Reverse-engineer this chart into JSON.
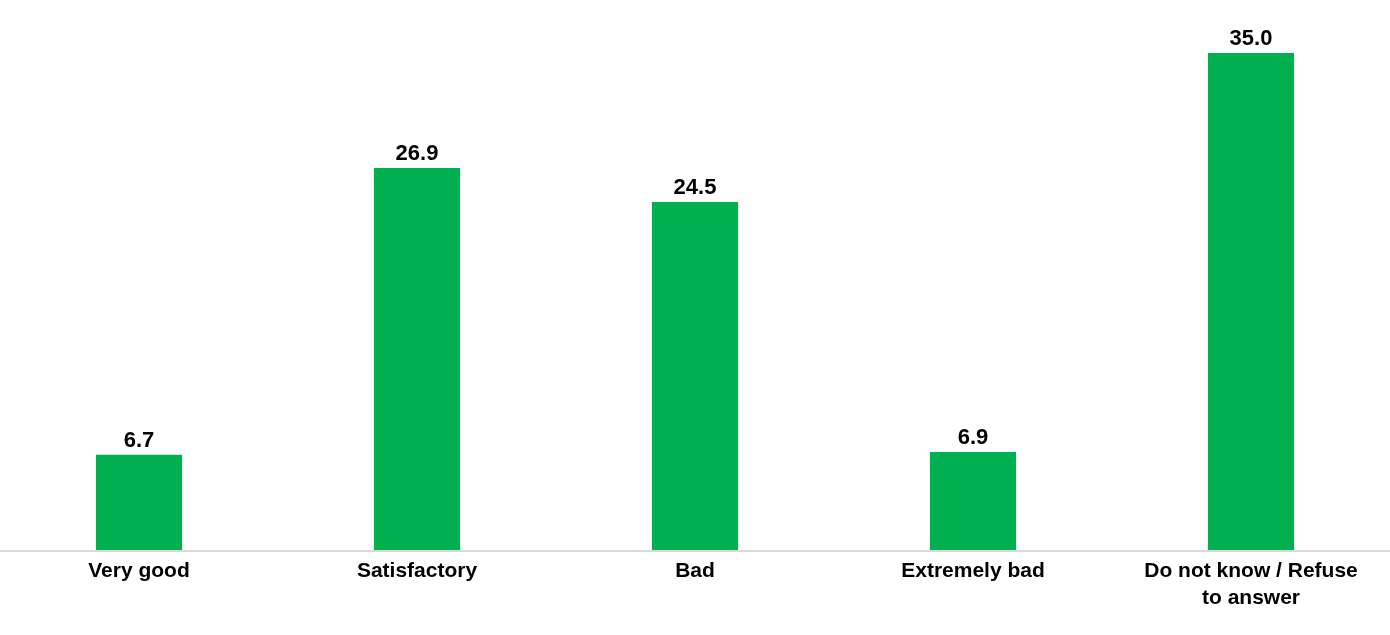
{
  "chart_data": {
    "type": "bar",
    "categories": [
      "Very good",
      "Satisfactory",
      "Bad",
      "Extremely bad",
      "Do not know / Refuse to answer"
    ],
    "values": [
      6.7,
      26.9,
      24.5,
      6.9,
      35.0
    ],
    "value_labels": [
      "6.7",
      "26.9",
      "24.5",
      "6.9",
      "35.0"
    ],
    "color": "#00b050"
  }
}
